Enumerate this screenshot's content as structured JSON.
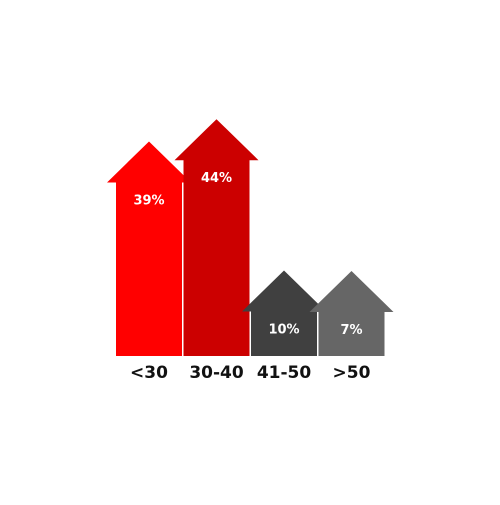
{
  "chart_data": {
    "type": "bar",
    "title": "",
    "xlabel": "",
    "ylabel": "",
    "categories": [
      "<30",
      "30-40",
      "41-50",
      ">50"
    ],
    "values": [
      39,
      44,
      10,
      7
    ],
    "value_labels": [
      "39%",
      "44%",
      "10%",
      "7%"
    ],
    "unit": "%",
    "bar_shape": "arrow-up",
    "colors": [
      "#ff0000",
      "#cc0000",
      "#404040",
      "#666666"
    ],
    "legend": "none",
    "grid": false
  }
}
